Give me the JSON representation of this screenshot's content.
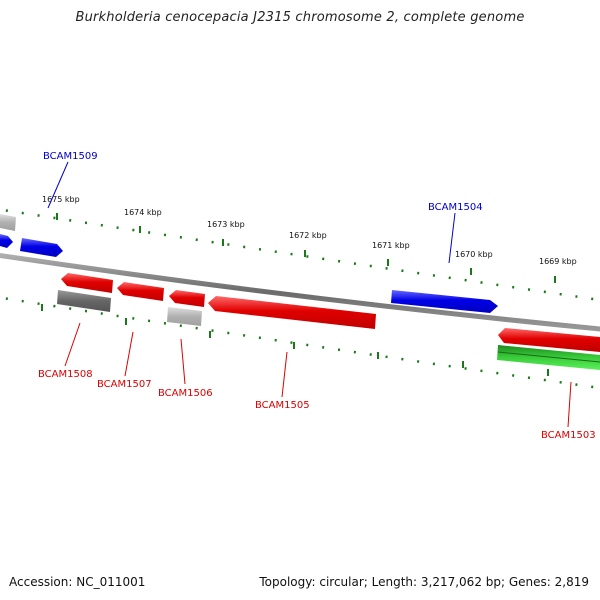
{
  "header": {
    "title": "Burkholderia cenocepacia J2315 chromosome 2, complete genome"
  },
  "footer": {
    "accession": "Accession: NC_011001",
    "summary": "Topology: circular; Length: 3,217,062 bp; Genes: 2,819"
  },
  "scale": {
    "labels": [
      "1675 kbp",
      "1674 kbp",
      "1673 kbp",
      "1672 kbp",
      "1671 kbp",
      "1670 kbp",
      "1669 kbp"
    ]
  },
  "genes": [
    {
      "name": "BCAM1509",
      "strand": "forward",
      "color": "#0000dd"
    },
    {
      "name": "BCAM1504",
      "strand": "forward",
      "color": "#0000dd"
    },
    {
      "name": "BCAM1508",
      "strand": "reverse",
      "color": "#dd0000"
    },
    {
      "name": "BCAM1507",
      "strand": "reverse",
      "color": "#dd0000"
    },
    {
      "name": "BCAM1506",
      "strand": "reverse",
      "color": "#dd0000"
    },
    {
      "name": "BCAM1505",
      "strand": "reverse",
      "color": "#dd0000"
    },
    {
      "name": "BCAM1503",
      "strand": "reverse",
      "color": "#dd0000"
    }
  ],
  "colors": {
    "backbone": "#808080",
    "forward_gene": "#0000ee",
    "reverse_gene": "#ee0000",
    "grey_feature": "#707070",
    "light_grey_feature": "#b8b8b8",
    "green_feature": "#22aa22",
    "tick": "#1a7a1a"
  }
}
